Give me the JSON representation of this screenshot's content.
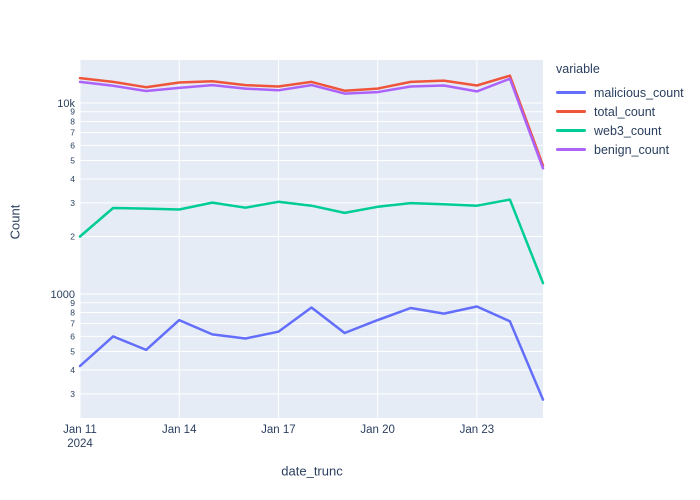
{
  "figure": {
    "yaxis_title": "Count",
    "xaxis_title": "date_trunc"
  },
  "legend": {
    "title": "variable",
    "items": [
      {
        "label": "malicious_count",
        "color": "#636EFA"
      },
      {
        "label": "total_count",
        "color": "#EF553B"
      },
      {
        "label": "web3_count",
        "color": "#00CC96"
      },
      {
        "label": "benign_count",
        "color": "#AB63FA"
      }
    ]
  },
  "colors": {
    "plot_bg": "#E5ECF6",
    "grid": "#FFFFFF",
    "text": "#2A3F5F"
  },
  "chart_data": {
    "type": "line",
    "title": "",
    "xlabel": "date_trunc",
    "ylabel": "Count",
    "grid": true,
    "legend_position": "right",
    "x": [
      "2024-01-11",
      "2024-01-12",
      "2024-01-13",
      "2024-01-14",
      "2024-01-15",
      "2024-01-16",
      "2024-01-17",
      "2024-01-18",
      "2024-01-19",
      "2024-01-20",
      "2024-01-21",
      "2024-01-22",
      "2024-01-23",
      "2024-01-24",
      "2024-01-25"
    ],
    "series": [
      {
        "name": "malicious_count",
        "color": "#636EFA",
        "values": [
          420,
          600,
          510,
          730,
          615,
          585,
          635,
          850,
          625,
          730,
          845,
          790,
          860,
          720,
          280
        ]
      },
      {
        "name": "total_count",
        "color": "#EF553B",
        "values": [
          13500,
          12900,
          12100,
          12800,
          13000,
          12400,
          12200,
          12900,
          11600,
          11900,
          12900,
          13100,
          12350,
          13900,
          4700
        ]
      },
      {
        "name": "web3_count",
        "color": "#00CC96",
        "values": [
          2000,
          2820,
          2800,
          2770,
          3010,
          2830,
          3040,
          2900,
          2660,
          2860,
          2990,
          2950,
          2900,
          3120,
          1140
        ]
      },
      {
        "name": "benign_count",
        "color": "#AB63FA",
        "values": [
          12900,
          12300,
          11550,
          12000,
          12400,
          11900,
          11650,
          12400,
          11200,
          11400,
          12200,
          12350,
          11500,
          13400,
          4550
        ]
      }
    ],
    "yaxis": {
      "scale": "log",
      "range_log": [
        2.351,
        4.225
      ],
      "ticks": [
        {
          "v": 10000,
          "label": "10k",
          "minor": false
        },
        {
          "v": 9000,
          "label": "9",
          "minor": true
        },
        {
          "v": 8000,
          "label": "8",
          "minor": true
        },
        {
          "v": 7000,
          "label": "7",
          "minor": true
        },
        {
          "v": 6000,
          "label": "6",
          "minor": true
        },
        {
          "v": 5000,
          "label": "5",
          "minor": true
        },
        {
          "v": 4000,
          "label": "4",
          "minor": true
        },
        {
          "v": 3000,
          "label": "3",
          "minor": true
        },
        {
          "v": 2000,
          "label": "2",
          "minor": true
        },
        {
          "v": 1000,
          "label": "1000",
          "minor": false
        },
        {
          "v": 900,
          "label": "9",
          "minor": true
        },
        {
          "v": 800,
          "label": "8",
          "minor": true
        },
        {
          "v": 700,
          "label": "7",
          "minor": true
        },
        {
          "v": 600,
          "label": "6",
          "minor": true
        },
        {
          "v": 500,
          "label": "5",
          "minor": true
        },
        {
          "v": 400,
          "label": "4",
          "minor": true
        },
        {
          "v": 300,
          "label": "3",
          "minor": true
        }
      ]
    },
    "xaxis": {
      "tick_indices": [
        0,
        3,
        6,
        9,
        12
      ],
      "tick_labels": [
        "Jan 11",
        "Jan 14",
        "Jan 17",
        "Jan 20",
        "Jan 23"
      ],
      "year_label": "2024"
    }
  }
}
